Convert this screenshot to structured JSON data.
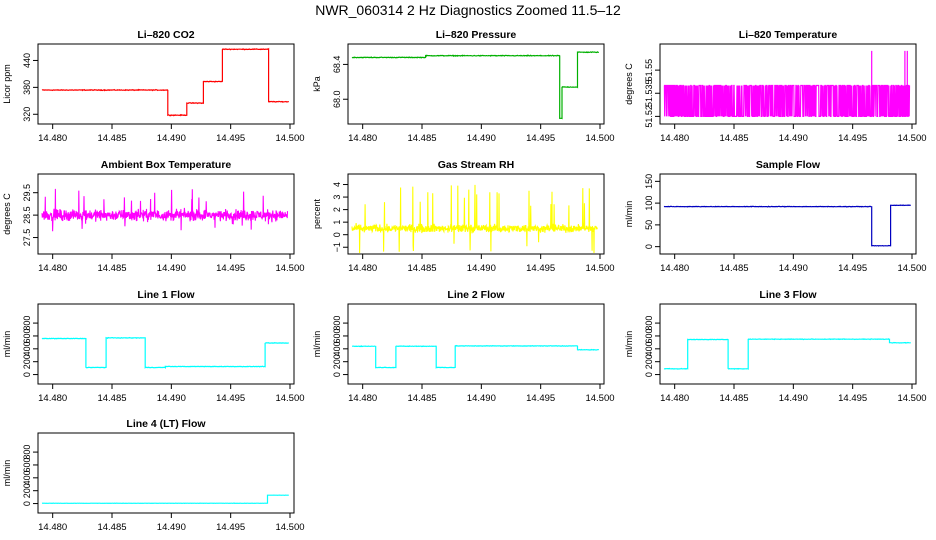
{
  "figure": {
    "title": "NWR_060314  2 Hz Diagnostics Zoomed 11.5–12"
  },
  "chart_data": [
    {
      "type": "line",
      "title": "Li–820 CO2",
      "ylabel": "Licor ppm",
      "color": "#ff0000",
      "shape": "steps",
      "xlim": [
        14.4791,
        14.5
      ],
      "xticks": [
        14.48,
        14.485,
        14.49,
        14.495,
        14.5
      ],
      "xtick_labels": [
        "14.480",
        "14.485",
        "14.490",
        "14.495",
        "14.500"
      ],
      "ylim": [
        305,
        470
      ],
      "yticks": [
        320,
        380,
        440
      ],
      "ytick_labels": [
        "320",
        "380",
        "440"
      ],
      "noise": 1.2,
      "segments": [
        [
          14.4791,
          14.4897,
          374
        ],
        [
          14.4897,
          14.4913,
          318
        ],
        [
          14.4913,
          14.4927,
          345
        ],
        [
          14.4927,
          14.4943,
          393
        ],
        [
          14.4943,
          14.4982,
          465
        ],
        [
          14.4982,
          14.4999,
          348
        ]
      ]
    },
    {
      "type": "line",
      "title": "Li–820 Pressure",
      "ylabel": "kPa",
      "color": "#00b000",
      "shape": "steps",
      "xlim": [
        14.4791,
        14.5
      ],
      "xticks": [
        14.48,
        14.485,
        14.49,
        14.495,
        14.5
      ],
      "xtick_labels": [
        "14.480",
        "14.485",
        "14.490",
        "14.495",
        "14.500"
      ],
      "ylim": [
        67.75,
        68.6
      ],
      "yticks": [
        68.0,
        68.4
      ],
      "ytick_labels": [
        "68.0",
        "68.4"
      ],
      "noise": 0.006,
      "segments": [
        [
          14.4791,
          14.4853,
          68.48
        ],
        [
          14.4853,
          14.4966,
          68.5
        ],
        [
          14.4966,
          14.4968,
          67.78
        ],
        [
          14.4968,
          14.4981,
          68.14
        ],
        [
          14.4981,
          14.4999,
          68.54
        ]
      ]
    },
    {
      "type": "line",
      "title": "Li–820 Temperature",
      "ylabel": "degrees C",
      "color": "#ff00ff",
      "shape": "flicker",
      "xlim": [
        14.4791,
        14.5
      ],
      "xticks": [
        14.48,
        14.485,
        14.49,
        14.495,
        14.5
      ],
      "xtick_labels": [
        "14.480",
        "14.485",
        "14.490",
        "14.495",
        "14.500"
      ],
      "ylim": [
        51.517,
        51.565
      ],
      "yticks": [
        51.52,
        51.535,
        51.55
      ],
      "ytick_labels": [
        "51.52",
        "51.535",
        "51.55"
      ],
      "levels": [
        51.52,
        51.54
      ],
      "spikes": [
        14.4966,
        14.4994,
        14.4996
      ],
      "spike_top": 51.5625
    },
    {
      "type": "line",
      "title": "Ambient Box Temperature",
      "ylabel": "degrees C",
      "color": "#ff00ff",
      "shape": "noise",
      "xlim": [
        14.4791,
        14.5
      ],
      "xticks": [
        14.48,
        14.485,
        14.49,
        14.495,
        14.5
      ],
      "xtick_labels": [
        "14.480",
        "14.485",
        "14.490",
        "14.495",
        "14.500"
      ],
      "ylim": [
        26.9,
        30.2
      ],
      "yticks": [
        27.5,
        28.5,
        29.5
      ],
      "ytick_labels": [
        "27.5",
        "28.5",
        "29.5"
      ],
      "center": 28.5,
      "amplitude": 0.35,
      "spike_amplitude": 1.2
    },
    {
      "type": "line",
      "title": "Gas Stream RH",
      "ylabel": "percent",
      "color": "#ffff00",
      "shape": "noise",
      "xlim": [
        14.4791,
        14.5
      ],
      "xticks": [
        14.48,
        14.485,
        14.49,
        14.495,
        14.5
      ],
      "xtick_labels": [
        "14.480",
        "14.485",
        "14.490",
        "14.495",
        "14.500"
      ],
      "ylim": [
        -1.3,
        4.6
      ],
      "yticks": [
        -1,
        0,
        1,
        2,
        3,
        4
      ],
      "ytick_labels": [
        "−1",
        "0",
        "1",
        "2",
        "3",
        "4"
      ],
      "center": 0.5,
      "amplitude": 0.45,
      "spike_amplitude": 3.5
    },
    {
      "type": "line",
      "title": "Sample Flow",
      "ylabel": "ml/min",
      "color": "#0000c0",
      "shape": "steps",
      "xlim": [
        14.4791,
        14.5
      ],
      "xticks": [
        14.48,
        14.485,
        14.49,
        14.495,
        14.5
      ],
      "xtick_labels": [
        "14.480",
        "14.485",
        "14.490",
        "14.495",
        "14.500"
      ],
      "ylim": [
        -10,
        160
      ],
      "yticks": [
        0,
        50,
        100,
        150
      ],
      "ytick_labels": [
        "0",
        "50",
        "100",
        "150"
      ],
      "noise": 0.8,
      "segments": [
        [
          14.4791,
          14.4966,
          92
        ],
        [
          14.4966,
          14.4982,
          2
        ],
        [
          14.4982,
          14.4999,
          95
        ]
      ]
    },
    {
      "type": "line",
      "title": "Line 1 Flow",
      "ylabel": "ml/min",
      "color": "#00ffff",
      "shape": "steps",
      "xlim": [
        14.4791,
        14.5
      ],
      "xticks": [
        14.48,
        14.485,
        14.49,
        14.495,
        14.5
      ],
      "xtick_labels": [
        "14.480",
        "14.485",
        "14.490",
        "14.495",
        "14.500"
      ],
      "ylim": [
        -100,
        1050
      ],
      "yticks": [
        0,
        200,
        400,
        600,
        800
      ],
      "ytick_labels": [
        "0",
        "200",
        "400",
        "600",
        "800"
      ],
      "noise": 6,
      "segments": [
        [
          14.4791,
          14.4828,
          560
        ],
        [
          14.4828,
          14.4845,
          110
        ],
        [
          14.4845,
          14.4878,
          570
        ],
        [
          14.4878,
          14.4895,
          110
        ],
        [
          14.4895,
          14.4979,
          125
        ],
        [
          14.4979,
          14.4999,
          490
        ]
      ]
    },
    {
      "type": "line",
      "title": "Line 2 Flow",
      "ylabel": "ml/min",
      "color": "#00ffff",
      "shape": "steps",
      "xlim": [
        14.4791,
        14.5
      ],
      "xticks": [
        14.48,
        14.485,
        14.49,
        14.495,
        14.5
      ],
      "xtick_labels": [
        "14.480",
        "14.485",
        "14.490",
        "14.495",
        "14.500"
      ],
      "ylim": [
        -100,
        1050
      ],
      "yticks": [
        0,
        200,
        400,
        600,
        800
      ],
      "ytick_labels": [
        "0",
        "200",
        "400",
        "600",
        "800"
      ],
      "noise": 6,
      "segments": [
        [
          14.4791,
          14.4811,
          440
        ],
        [
          14.4811,
          14.4828,
          110
        ],
        [
          14.4828,
          14.4862,
          440
        ],
        [
          14.4862,
          14.4878,
          110
        ],
        [
          14.4878,
          14.4981,
          445
        ],
        [
          14.4981,
          14.4999,
          385
        ]
      ]
    },
    {
      "type": "line",
      "title": "Line 3 Flow",
      "ylabel": "ml/min",
      "color": "#00ffff",
      "shape": "steps",
      "xlim": [
        14.4791,
        14.5
      ],
      "xticks": [
        14.48,
        14.485,
        14.49,
        14.495,
        14.5
      ],
      "xtick_labels": [
        "14.480",
        "14.485",
        "14.490",
        "14.495",
        "14.500"
      ],
      "ylim": [
        -100,
        1050
      ],
      "yticks": [
        0,
        200,
        400,
        600,
        800
      ],
      "ytick_labels": [
        "0",
        "200",
        "400",
        "600",
        "800"
      ],
      "noise": 6,
      "segments": [
        [
          14.4791,
          14.4811,
          90
        ],
        [
          14.4811,
          14.4845,
          545
        ],
        [
          14.4845,
          14.4862,
          90
        ],
        [
          14.4862,
          14.4981,
          550
        ],
        [
          14.4981,
          14.4999,
          495
        ]
      ]
    },
    {
      "type": "line",
      "title": "Line 4 (LT) Flow",
      "ylabel": "ml/min",
      "color": "#00ffff",
      "shape": "steps",
      "xlim": [
        14.4791,
        14.5
      ],
      "xticks": [
        14.48,
        14.485,
        14.49,
        14.495,
        14.5
      ],
      "xtick_labels": [
        "14.480",
        "14.485",
        "14.490",
        "14.495",
        "14.500"
      ],
      "ylim": [
        -100,
        1050
      ],
      "yticks": [
        0,
        200,
        400,
        600,
        800
      ],
      "ytick_labels": [
        "0",
        "200",
        "400",
        "600",
        "800"
      ],
      "noise": 2,
      "segments": [
        [
          14.4791,
          14.4981,
          5
        ],
        [
          14.4981,
          14.4999,
          130
        ]
      ]
    }
  ]
}
